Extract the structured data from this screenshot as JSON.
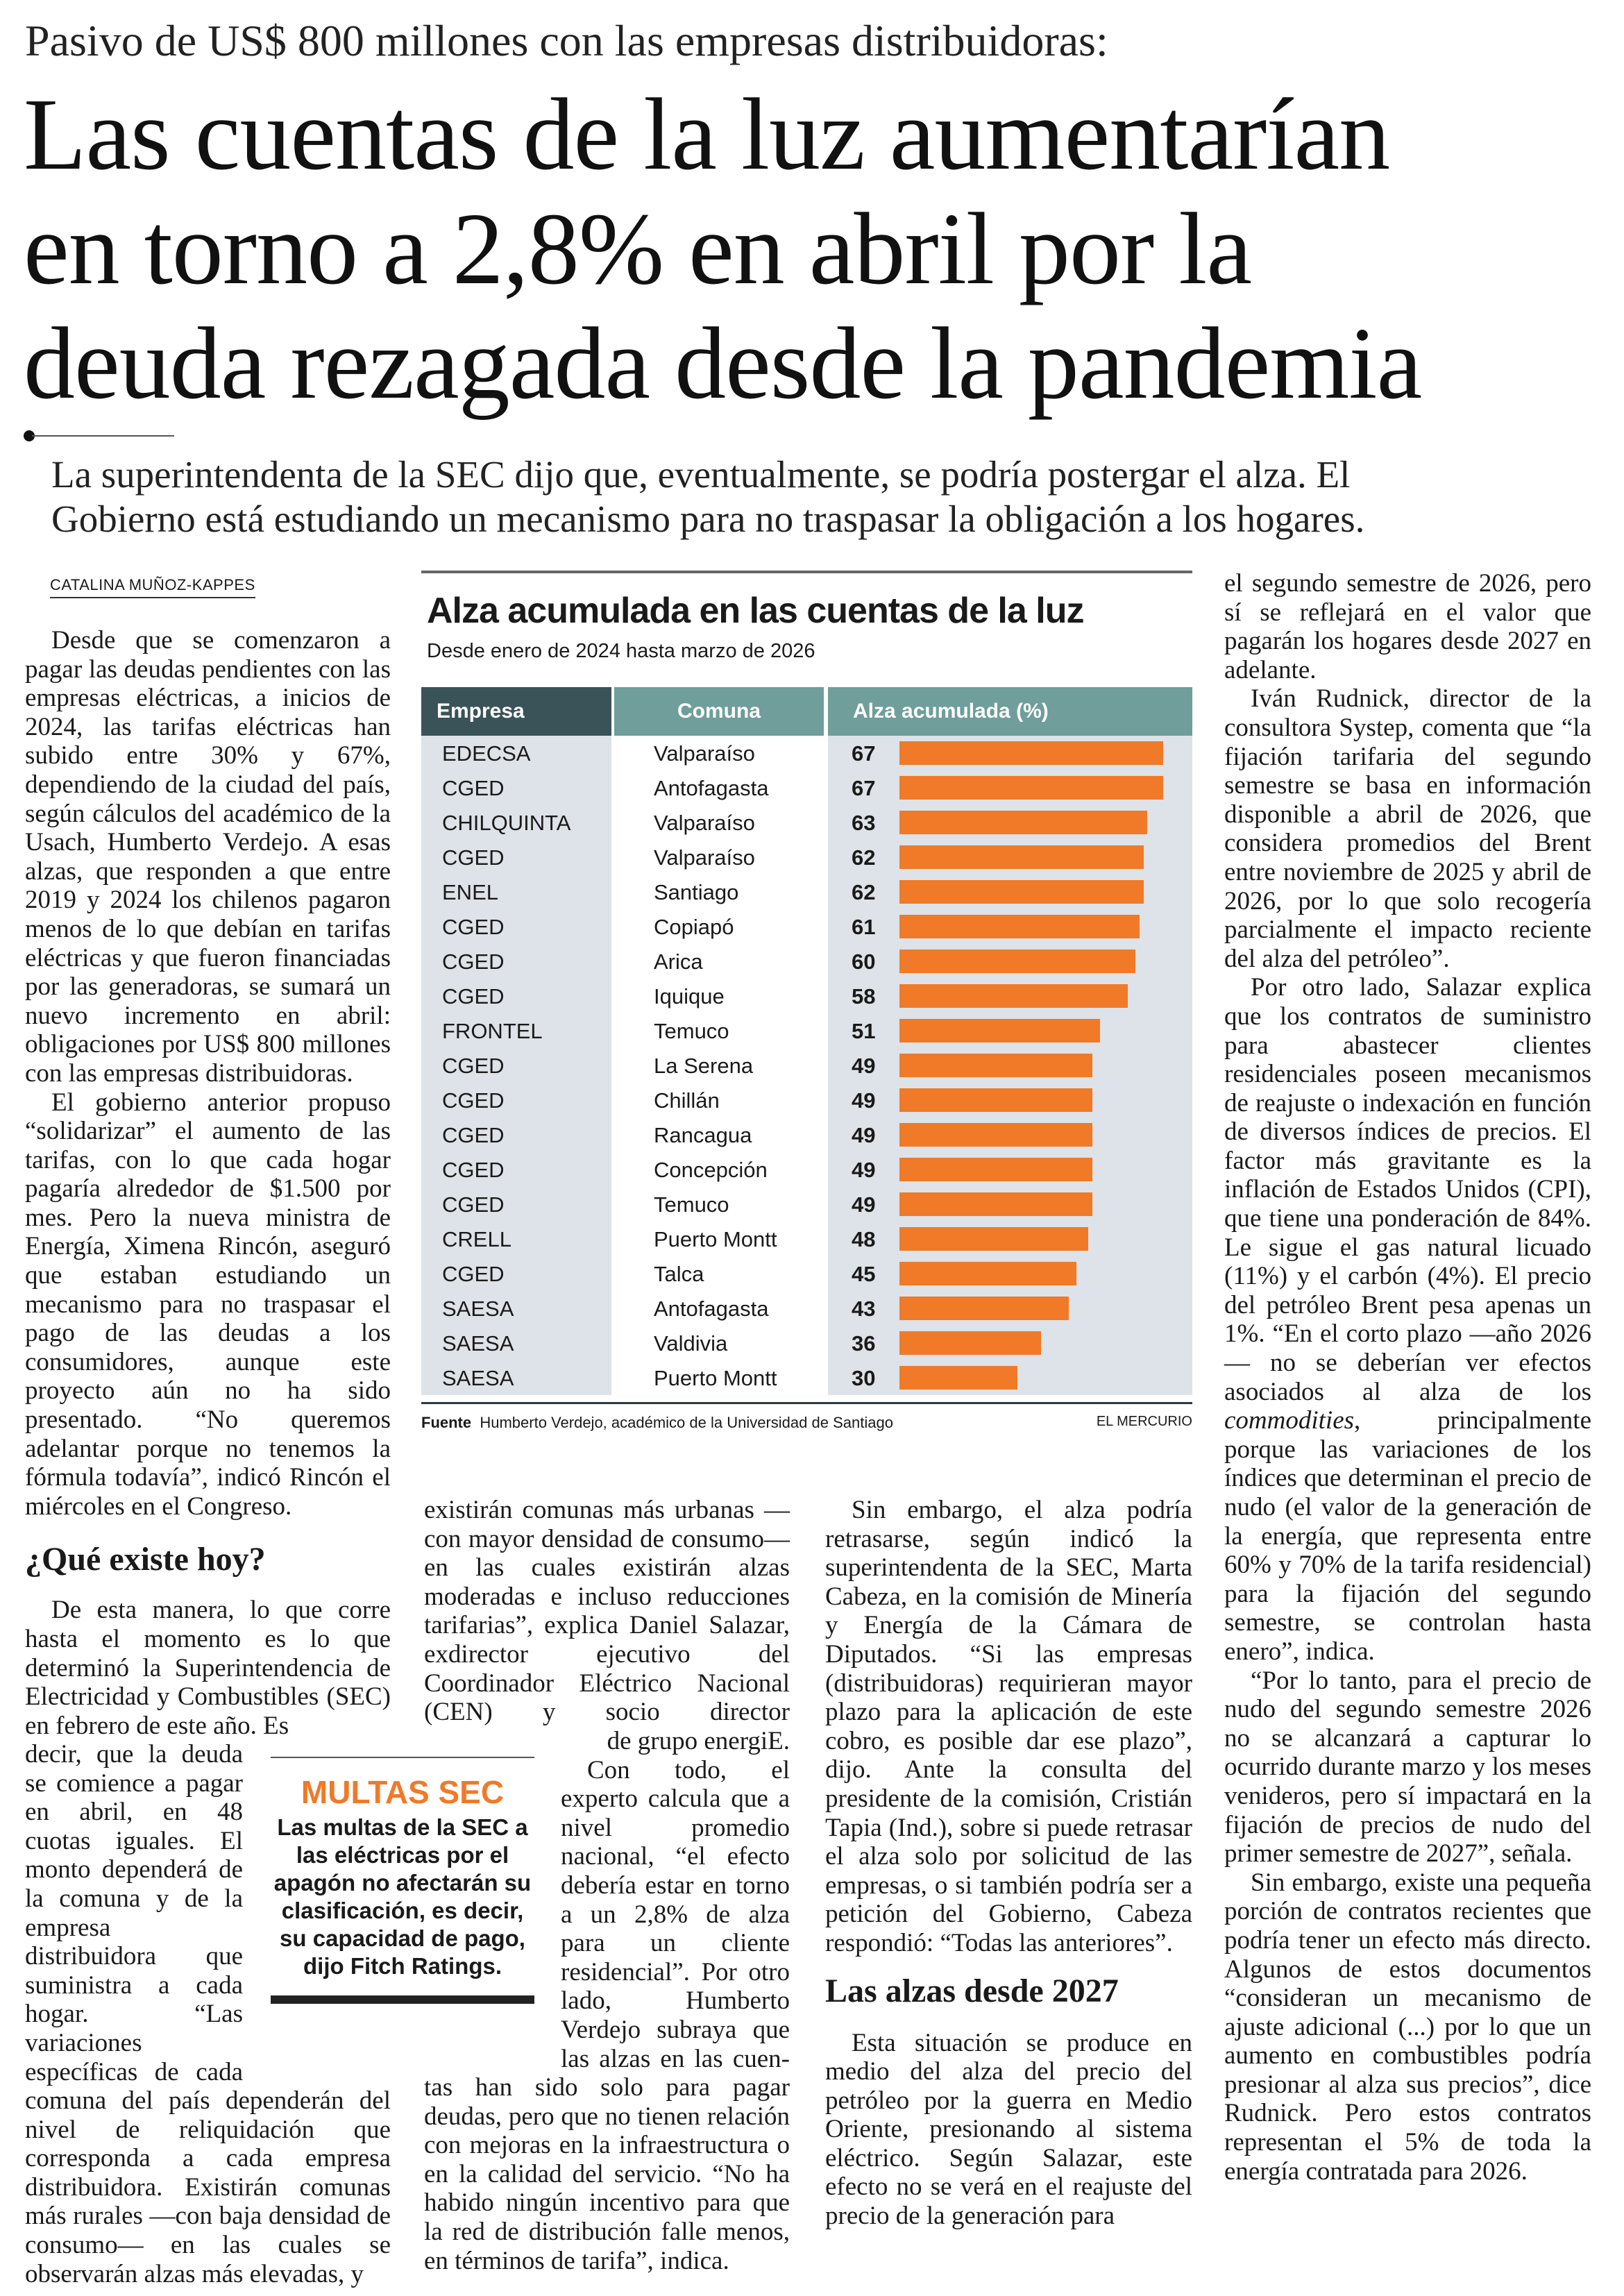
{
  "kicker": "Pasivo de US$ 800 millones con las empresas distribuidoras:",
  "headline": [
    "Las cuentas de la luz aumentarían",
    "en torno a 2,8% en abril por la",
    "deuda rezagada desde la pandemia"
  ],
  "deck": [
    "La superintendenta de la SEC dijo que, eventualmente, se podría postergar el alza. El",
    "Gobierno está estudiando un mecanismo para no traspasar la obligación a los hogares."
  ],
  "byline": "CATALINA MUÑOZ-KAPPES",
  "col1": {
    "p1": "Desde que se comenzaron a pagar las deudas pendientes con las empresas eléctricas, a inicios de 2024, las tarifas eléctricas han subido entre 30% y 67%, dependiendo de la ciudad del país, según cálculos del académico de la Usach, Humberto Verdejo. A esas alzas, que responden a que entre 2019 y 2024 los chilenos pagaron menos de lo que debían en tarifas eléctricas y que fueron financiadas por las generadoras, se sumará un nuevo incremento en abril: obligaciones por US$ 800 millones con las empresas distribuidoras.",
    "p2": "El gobierno anterior propuso “solidarizar” el aumento de las tarifas, con lo que cada hogar pagaría alrededor de $1.500 por mes. Pero la nueva ministra de Energía, Ximena Rincón, aseguró que estaban estudiando un mecanismo para no traspasar el pago de las deudas a los consumidores, aunque este proyecto aún no ha sido presentado. “No queremos adelantar porque no tenemos la fórmula todavía”, indicó Rincón el miércoles en el Congreso.",
    "heading": "¿Qué existe hoy?",
    "p3a": "De esta manera, lo que corre hasta el momento es lo que determinó la Superintendencia de Electricidad y Combustibles (SEC) en febrero de este año. Es",
    "p3b": "decir, que la deuda se comience a pagar en abril, en 48 cuotas iguales. El monto dependerá de la comuna y de la empresa distribuidora que suministra a cada hogar. “Las variaciones específicas de cada",
    "p3c": "comuna del país dependerán del nivel de reliquidación que corresponda a cada empresa distribuidora. Existirán comunas más rurales —con baja densidad de consumo— en las cuales se observarán alzas más elevadas, y"
  },
  "col2": {
    "p1a": "existirán comunas más urbanas —con mayor densidad de consumo— en las cuales existirán alzas moderadas e incluso reducciones tarifarias”, explica Daniel Salazar, exdirector ejecutivo del Coordinador Eléctrico Nacional (CEN) y socio director",
    "p1b": "de grupo energiE.",
    "p2a": "Con todo, el experto calcula que a nivel promedio nacional, “el efecto debería estar en torno a un 2,8% de alza para un cliente residencial”. Por otro lado, Humberto Verdejo subraya que las alzas en las cuen-",
    "p2b": "tas han sido solo para pagar deudas, pero que no tienen relación con mejoras en la infraestructura o en la calidad del servicio. “No ha habido ningún incentivo para que la red de distribución falle menos, en términos de tarifa”, indica."
  },
  "col3": {
    "p1": "Sin embargo, el alza podría retrasarse, según indicó la superintendenta de la SEC, Marta Cabeza, en la comisión de Minería y Energía de la Cámara de Diputados. “Si las empresas (distribuidoras) requirieran mayor plazo para la aplicación de este cobro, es posible dar ese plazo”, dijo. Ante la consulta del presidente de la comisión, Cristián Tapia (Ind.), sobre si puede retrasar el alza solo por solicitud de las empresas, o si también podría ser a petición del Gobierno, Cabeza respondió: “Todas las anteriores”.",
    "heading": "Las alzas desde 2027",
    "p2": "Esta situación se produce en medio del alza del precio del petróleo por la guerra en Medio Oriente, presionando al sistema eléctrico. Según Salazar, este efecto no se verá en el reajuste del precio de la generación para"
  },
  "col4": {
    "p1": "el segundo semestre de 2026, pero sí se reflejará en el valor que pagarán los hogares desde 2027 en adelante.",
    "p2": "Iván Rudnick, director de la consultora Systep, comenta que “la fijación tarifaria del segundo semestre se basa en información disponible a abril de 2026, que considera promedios del Brent entre noviembre de 2025 y abril de 2026, por lo que solo recogería parcialmente el impacto reciente del alza del petróleo”.",
    "p3a": "Por otro lado, Salazar explica que los contratos de suministro para abastecer clientes residenciales poseen mecanismos de reajuste o indexación en función de diversos índices de precios. El factor más gravitante es la inflación de Estados Unidos (CPI), que tiene una ponderación de 84%. Le sigue el gas natural licuado (11%) y el carbón (4%). El precio del petróleo Brent pesa apenas un 1%. “En el corto plazo —año 2026— no se deberían ver efectos asociados al alza de los ",
    "p3b": "commodities",
    "p3c": ", principalmente porque las variaciones de los índices que determinan el precio de nudo (el valor de la generación de la energía, que representa entre 60% y 70% de la tarifa residencial) para la fijación del segundo semestre, se controlan hasta enero”, indica.",
    "p4": "“Por lo tanto, para el precio de nudo del segundo semestre 2026 no se alcanzará a capturar lo ocurrido durante marzo y los meses venideros, pero sí impactará en la fijación de precios de nudo del primer semestre de 2027”, señala.",
    "p5": "Sin embargo, existe una pequeña porción de contratos recientes que podría tener un efecto más directo. Algunos de estos documentos “consideran un mecanismo de ajuste adicional (...) por lo que un aumento en combustibles podría presionar al alza sus precios”, dice Rudnick. Pero estos contratos representan el 5% de toda la energía contratada para 2026."
  },
  "sidebar": {
    "title": "MULTAS SEC",
    "text": "Las multas de la SEC a las eléctricas por el apagón no afectarán su clasificación, es decir, su capacidad de pago, dijo Fitch Ratings."
  },
  "chart_data": {
    "type": "table",
    "title": "Alza acumulada en las cuentas de la luz",
    "subtitle": "Desde enero de 2024 hasta marzo de 2026",
    "columns": [
      "Empresa",
      "Comuna",
      "Alza acumulada (%)"
    ],
    "rows": [
      {
        "empresa": "EDECSA",
        "comuna": "Valparaíso",
        "value": 67
      },
      {
        "empresa": "CGED",
        "comuna": "Antofagasta",
        "value": 67
      },
      {
        "empresa": "CHILQUINTA",
        "comuna": "Valparaíso",
        "value": 63
      },
      {
        "empresa": "CGED",
        "comuna": "Valparaíso",
        "value": 62
      },
      {
        "empresa": "ENEL",
        "comuna": "Santiago",
        "value": 62
      },
      {
        "empresa": "CGED",
        "comuna": "Copiapó",
        "value": 61
      },
      {
        "empresa": "CGED",
        "comuna": "Arica",
        "value": 60
      },
      {
        "empresa": "CGED",
        "comuna": "Iquique",
        "value": 58
      },
      {
        "empresa": "FRONTEL",
        "comuna": "Temuco",
        "value": 51
      },
      {
        "empresa": "CGED",
        "comuna": "La Serena",
        "value": 49
      },
      {
        "empresa": "CGED",
        "comuna": "Chillán",
        "value": 49
      },
      {
        "empresa": "CGED",
        "comuna": "Rancagua",
        "value": 49
      },
      {
        "empresa": "CGED",
        "comuna": "Concepción",
        "value": 49
      },
      {
        "empresa": "CGED",
        "comuna": "Temuco",
        "value": 49
      },
      {
        "empresa": "CRELL",
        "comuna": "Puerto Montt",
        "value": 48
      },
      {
        "empresa": "CGED",
        "comuna": "Talca",
        "value": 45
      },
      {
        "empresa": "SAESA",
        "comuna": "Antofagasta",
        "value": 43
      },
      {
        "empresa": "SAESA",
        "comuna": "Valdivia",
        "value": 36
      },
      {
        "empresa": "SAESA",
        "comuna": "Puerto Montt",
        "value": 30
      }
    ],
    "xlim": [
      0,
      67
    ],
    "source_label": "Fuente",
    "source": "Humberto Verdejo, académico de la Universidad de Santiago",
    "brand": "EL MERCURIO",
    "colors": {
      "bar": "#f07a28",
      "header_dark": "#3a5358",
      "header_teal": "#6f9e9b",
      "row_shade": "#dde3e8"
    }
  }
}
